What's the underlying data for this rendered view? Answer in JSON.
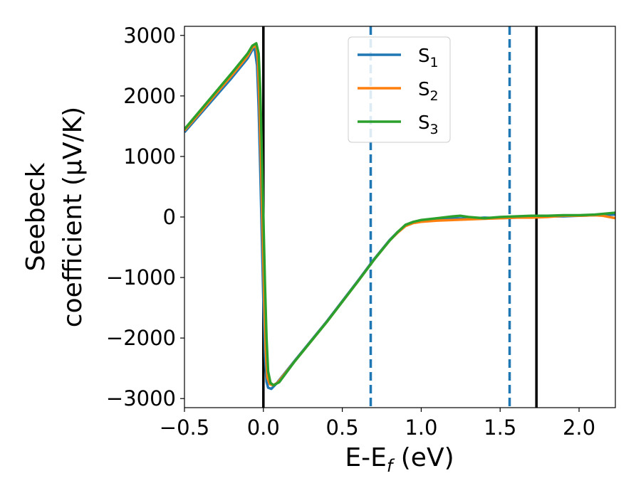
{
  "chart_data": {
    "type": "line",
    "xlabel": "E-E",
    "xlabel_sub": "f",
    "xlabel_unit": " (eV)",
    "ylabel_line1": "Seebeck",
    "ylabel_line2": "coefficient  (μV/K)",
    "xlim": [
      -0.5,
      2.23
    ],
    "ylim": [
      -3150,
      3150
    ],
    "xticks": [
      -0.5,
      0.0,
      0.5,
      1.0,
      1.5,
      2.0
    ],
    "xtick_labels": [
      "−0.5",
      "0.0",
      "0.5",
      "1.0",
      "1.5",
      "2.0"
    ],
    "yticks": [
      -3000,
      -2000,
      -1000,
      0,
      1000,
      2000,
      3000
    ],
    "ytick_labels": [
      "−3000",
      "−2000",
      "−1000",
      "0",
      "1000",
      "2000",
      "3000"
    ],
    "vlines": [
      {
        "x": 0.0,
        "color": "#000000",
        "style": "solid"
      },
      {
        "x": 1.73,
        "color": "#000000",
        "style": "solid"
      },
      {
        "x": 0.68,
        "color": "#1f77b4",
        "style": "dashed"
      },
      {
        "x": 1.56,
        "color": "#1f77b4",
        "style": "dashed"
      }
    ],
    "legend_position": "top-center",
    "series": [
      {
        "name": "S",
        "sub": "1",
        "color": "#1f77b4",
        "points": [
          [
            -0.5,
            1400
          ],
          [
            -0.4,
            1700
          ],
          [
            -0.3,
            2000
          ],
          [
            -0.2,
            2300
          ],
          [
            -0.1,
            2620
          ],
          [
            -0.07,
            2760
          ],
          [
            -0.055,
            2780
          ],
          [
            -0.04,
            2500
          ],
          [
            -0.03,
            1800
          ],
          [
            -0.02,
            800
          ],
          [
            -0.01,
            -300
          ],
          [
            0.0,
            -1400
          ],
          [
            0.01,
            -2300
          ],
          [
            0.02,
            -2720
          ],
          [
            0.03,
            -2820
          ],
          [
            0.05,
            -2840
          ],
          [
            0.08,
            -2760
          ],
          [
            0.2,
            -2370
          ],
          [
            0.4,
            -1730
          ],
          [
            0.6,
            -1050
          ],
          [
            0.7,
            -700
          ],
          [
            0.8,
            -380
          ],
          [
            0.85,
            -250
          ],
          [
            0.9,
            -140
          ],
          [
            0.95,
            -90
          ],
          [
            1.0,
            -70
          ],
          [
            1.1,
            -40
          ],
          [
            1.2,
            -20
          ],
          [
            1.3,
            -30
          ],
          [
            1.4,
            -10
          ],
          [
            1.5,
            -20
          ],
          [
            1.6,
            -10
          ],
          [
            1.7,
            0
          ],
          [
            1.8,
            10
          ],
          [
            1.9,
            10
          ],
          [
            2.0,
            20
          ],
          [
            2.1,
            30
          ],
          [
            2.23,
            40
          ]
        ]
      },
      {
        "name": "S",
        "sub": "2",
        "color": "#ff7f0e",
        "points": [
          [
            -0.5,
            1430
          ],
          [
            -0.4,
            1730
          ],
          [
            -0.3,
            2040
          ],
          [
            -0.2,
            2340
          ],
          [
            -0.1,
            2660
          ],
          [
            -0.07,
            2800
          ],
          [
            -0.045,
            2830
          ],
          [
            -0.035,
            2600
          ],
          [
            -0.025,
            1900
          ],
          [
            -0.015,
            900
          ],
          [
            -0.005,
            -200
          ],
          [
            0.005,
            -1300
          ],
          [
            0.015,
            -2200
          ],
          [
            0.025,
            -2650
          ],
          [
            0.04,
            -2760
          ],
          [
            0.06,
            -2780
          ],
          [
            0.09,
            -2740
          ],
          [
            0.2,
            -2380
          ],
          [
            0.4,
            -1740
          ],
          [
            0.6,
            -1060
          ],
          [
            0.7,
            -710
          ],
          [
            0.8,
            -390
          ],
          [
            0.85,
            -260
          ],
          [
            0.9,
            -150
          ],
          [
            0.95,
            -100
          ],
          [
            1.0,
            -80
          ],
          [
            1.1,
            -60
          ],
          [
            1.2,
            -50
          ],
          [
            1.3,
            -40
          ],
          [
            1.4,
            -30
          ],
          [
            1.5,
            -20
          ],
          [
            1.6,
            -10
          ],
          [
            1.7,
            -10
          ],
          [
            1.8,
            0
          ],
          [
            1.9,
            20
          ],
          [
            2.0,
            20
          ],
          [
            2.1,
            30
          ],
          [
            2.15,
            20
          ],
          [
            2.23,
            -20
          ]
        ]
      },
      {
        "name": "S",
        "sub": "3",
        "color": "#2ca02c",
        "points": [
          [
            -0.5,
            1450
          ],
          [
            -0.4,
            1760
          ],
          [
            -0.3,
            2070
          ],
          [
            -0.2,
            2380
          ],
          [
            -0.1,
            2700
          ],
          [
            -0.07,
            2830
          ],
          [
            -0.045,
            2870
          ],
          [
            -0.03,
            2700
          ],
          [
            -0.02,
            2100
          ],
          [
            -0.01,
            1100
          ],
          [
            0.0,
            0
          ],
          [
            0.01,
            -1100
          ],
          [
            0.02,
            -2000
          ],
          [
            0.03,
            -2550
          ],
          [
            0.045,
            -2740
          ],
          [
            0.065,
            -2780
          ],
          [
            0.1,
            -2730
          ],
          [
            0.2,
            -2380
          ],
          [
            0.4,
            -1740
          ],
          [
            0.6,
            -1060
          ],
          [
            0.7,
            -710
          ],
          [
            0.8,
            -390
          ],
          [
            0.85,
            -250
          ],
          [
            0.9,
            -130
          ],
          [
            0.95,
            -80
          ],
          [
            1.0,
            -50
          ],
          [
            1.1,
            -20
          ],
          [
            1.2,
            10
          ],
          [
            1.25,
            20
          ],
          [
            1.3,
            0
          ],
          [
            1.4,
            -20
          ],
          [
            1.5,
            0
          ],
          [
            1.6,
            10
          ],
          [
            1.7,
            20
          ],
          [
            1.8,
            20
          ],
          [
            1.9,
            30
          ],
          [
            2.0,
            30
          ],
          [
            2.1,
            40
          ],
          [
            2.23,
            70
          ]
        ]
      }
    ]
  }
}
